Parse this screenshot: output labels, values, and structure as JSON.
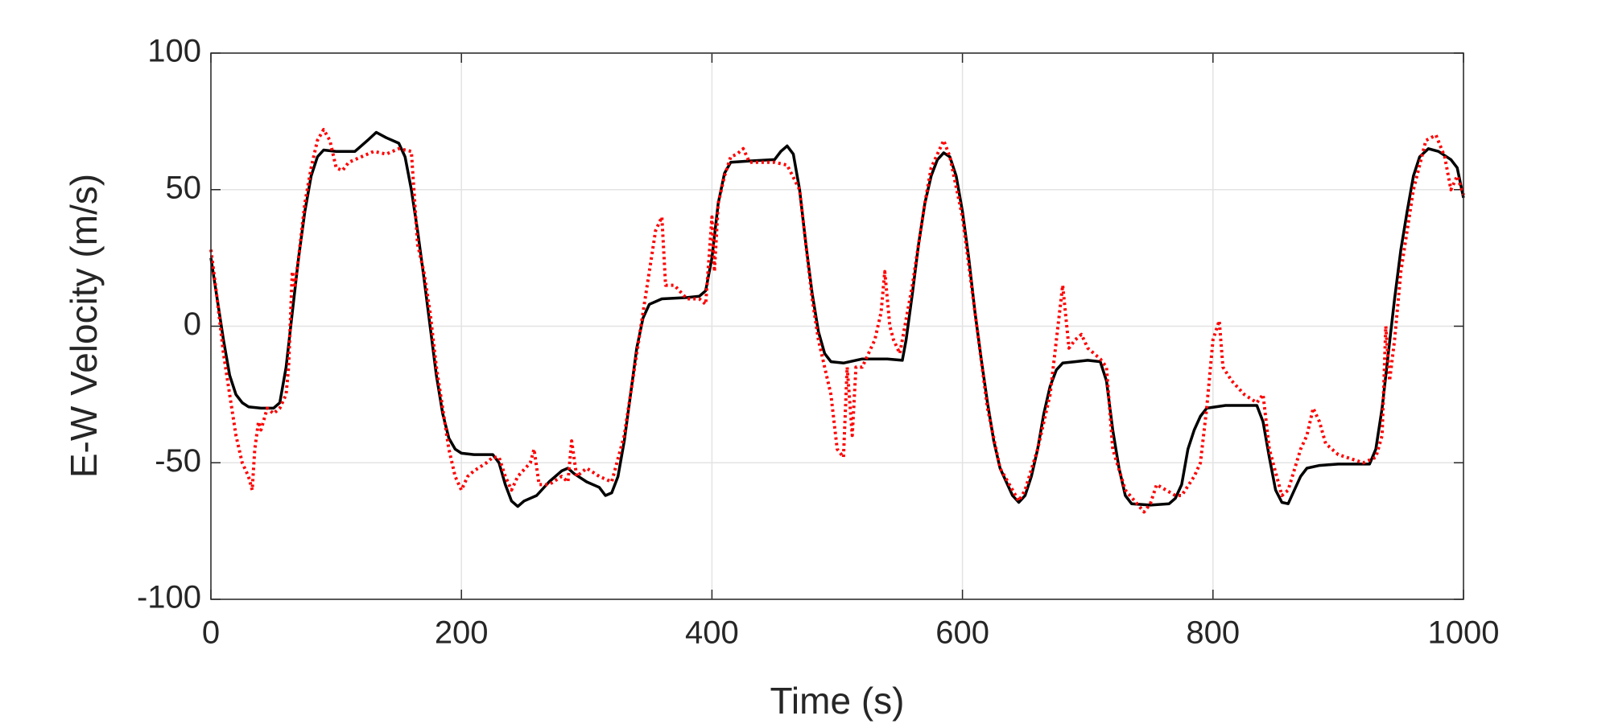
{
  "chart_data": {
    "type": "line",
    "xlabel": "Time (s)",
    "ylabel": "E-W Velocity (m/s)",
    "xlim": [
      0,
      1000
    ],
    "xticks": [
      0,
      200,
      400,
      600,
      800,
      1000
    ],
    "ylim": [
      -100,
      100
    ],
    "yticks": [
      -100,
      -50,
      0,
      50,
      100
    ],
    "grid": true,
    "series": [
      {
        "color": "#000000",
        "style": "solid",
        "x": [
          0,
          5,
          10,
          15,
          20,
          25,
          30,
          40,
          50,
          55,
          60,
          65,
          70,
          75,
          80,
          85,
          90,
          100,
          115,
          120,
          125,
          132,
          140,
          150,
          155,
          160,
          165,
          170,
          175,
          180,
          185,
          190,
          195,
          200,
          210,
          225,
          230,
          235,
          240,
          245,
          250,
          260,
          270,
          280,
          285,
          290,
          300,
          310,
          315,
          320,
          325,
          330,
          335,
          340,
          345,
          350,
          360,
          380,
          390,
          395,
          400,
          405,
          410,
          415,
          430,
          450,
          455,
          460,
          465,
          470,
          475,
          480,
          485,
          490,
          495,
          505,
          520,
          540,
          552,
          555,
          560,
          565,
          570,
          575,
          580,
          585,
          590,
          595,
          600,
          605,
          610,
          615,
          620,
          625,
          630,
          640,
          645,
          650,
          655,
          660,
          665,
          670,
          675,
          680,
          690,
          700,
          710,
          715,
          720,
          725,
          730,
          735,
          750,
          765,
          770,
          775,
          780,
          785,
          790,
          795,
          810,
          835,
          840,
          845,
          850,
          855,
          860,
          865,
          870,
          875,
          885,
          900,
          925,
          930,
          935,
          940,
          945,
          950,
          955,
          960,
          965,
          972,
          980,
          990,
          995,
          1000
        ],
        "values": [
          25,
          10,
          -5,
          -18,
          -25,
          -28,
          -29.5,
          -30,
          -30,
          -28,
          -15,
          5,
          25,
          42,
          55,
          62,
          64.5,
          64,
          64,
          66,
          68,
          71,
          69,
          67,
          62,
          50,
          35,
          18,
          0,
          -18,
          -32,
          -41,
          -45,
          -46.5,
          -47,
          -47,
          -50,
          -58,
          -64,
          -66,
          -64,
          -62,
          -57,
          -53,
          -52,
          -54,
          -57,
          -59,
          -62,
          -61,
          -55,
          -42,
          -25,
          -8,
          3,
          8,
          10,
          10.5,
          11,
          13,
          25,
          45,
          56,
          60,
          60.5,
          61,
          64,
          66,
          63,
          50,
          30,
          12,
          -2,
          -10,
          -13,
          -13.5,
          -12,
          -12,
          -12.5,
          -5,
          12,
          30,
          45,
          55,
          61,
          63.5,
          62,
          55,
          42,
          25,
          5,
          -12,
          -28,
          -42,
          -52,
          -62,
          -64.5,
          -62,
          -55,
          -45,
          -32,
          -22,
          -16,
          -13.5,
          -13,
          -12.5,
          -13,
          -20,
          -38,
          -52,
          -62,
          -65,
          -65.5,
          -65,
          -63,
          -58,
          -45,
          -38,
          -33,
          -30,
          -29,
          -29,
          -35,
          -48,
          -60,
          -64.5,
          -65,
          -60,
          -55,
          -52,
          -51,
          -50.5,
          -50.5,
          -45,
          -30,
          -10,
          10,
          28,
          42,
          55,
          62,
          65,
          64,
          61,
          58,
          47
        ]
      },
      {
        "color": "#ff0000",
        "style": "dotted",
        "x": [
          0,
          5,
          10,
          15,
          20,
          25,
          30,
          33,
          35,
          38,
          40,
          45,
          50,
          55,
          60,
          62,
          65,
          67,
          70,
          75,
          80,
          85,
          90,
          95,
          100,
          105,
          110,
          120,
          130,
          140,
          150,
          160,
          165,
          170,
          175,
          180,
          185,
          190,
          195,
          200,
          205,
          210,
          220,
          225,
          230,
          235,
          240,
          245,
          255,
          258,
          262,
          270,
          280,
          285,
          288,
          292,
          300,
          310,
          320,
          330,
          340,
          345,
          350,
          355,
          360,
          363,
          370,
          380,
          390,
          395,
          400,
          402,
          405,
          410,
          415,
          420,
          425,
          430,
          440,
          450,
          460,
          470,
          475,
          480,
          485,
          490,
          495,
          500,
          505,
          508,
          512,
          515,
          520,
          525,
          530,
          535,
          538,
          542,
          545,
          550,
          560,
          565,
          570,
          575,
          585,
          590,
          600,
          610,
          620,
          630,
          645,
          650,
          660,
          670,
          675,
          680,
          685,
          690,
          695,
          700,
          710,
          715,
          720,
          730,
          745,
          750,
          755,
          770,
          775,
          785,
          790,
          795,
          800,
          805,
          808,
          815,
          825,
          835,
          840,
          845,
          855,
          860,
          870,
          875,
          880,
          885,
          890,
          900,
          920,
          930,
          935,
          938,
          941,
          945,
          950,
          960,
          970,
          978,
          985,
          990,
          995,
          1000
        ],
        "values": [
          28,
          10,
          -10,
          -25,
          -40,
          -50,
          -55,
          -60,
          -45,
          -35,
          -38,
          -30,
          -32,
          -30,
          -25,
          -15,
          20,
          15,
          25,
          45,
          58,
          68,
          72,
          68,
          58,
          57,
          60,
          62,
          64,
          63,
          65,
          64,
          30,
          20,
          5,
          -15,
          -30,
          -45,
          -55,
          -60,
          -55,
          -53,
          -50,
          -48,
          -48,
          -55,
          -60,
          -55,
          -50,
          -45,
          -58,
          -58,
          -55,
          -57,
          -42,
          -55,
          -52,
          -55,
          -57,
          -40,
          -10,
          5,
          20,
          35,
          40,
          15,
          15,
          10,
          10,
          8,
          40,
          20,
          45,
          55,
          62,
          63,
          65,
          60,
          60,
          60,
          59,
          50,
          30,
          10,
          -5,
          -15,
          -25,
          -45,
          -48,
          -15,
          -40,
          -15,
          -15,
          -10,
          -5,
          5,
          20,
          0,
          -5,
          -10,
          15,
          30,
          45,
          58,
          68,
          62,
          40,
          5,
          -30,
          -52,
          -64,
          -60,
          -45,
          -25,
          -5,
          15,
          -8,
          -5,
          -3,
          -8,
          -12,
          -15,
          -45,
          -60,
          -68,
          -65,
          -58,
          -62,
          -62,
          -55,
          -50,
          -30,
          -5,
          2,
          -15,
          -20,
          -25,
          -28,
          -25,
          -45,
          -62,
          -60,
          -45,
          -40,
          -30,
          -35,
          -43,
          -47,
          -50,
          -48,
          -40,
          0,
          -20,
          -5,
          20,
          50,
          68,
          70,
          62,
          50,
          55,
          48
        ]
      }
    ]
  }
}
